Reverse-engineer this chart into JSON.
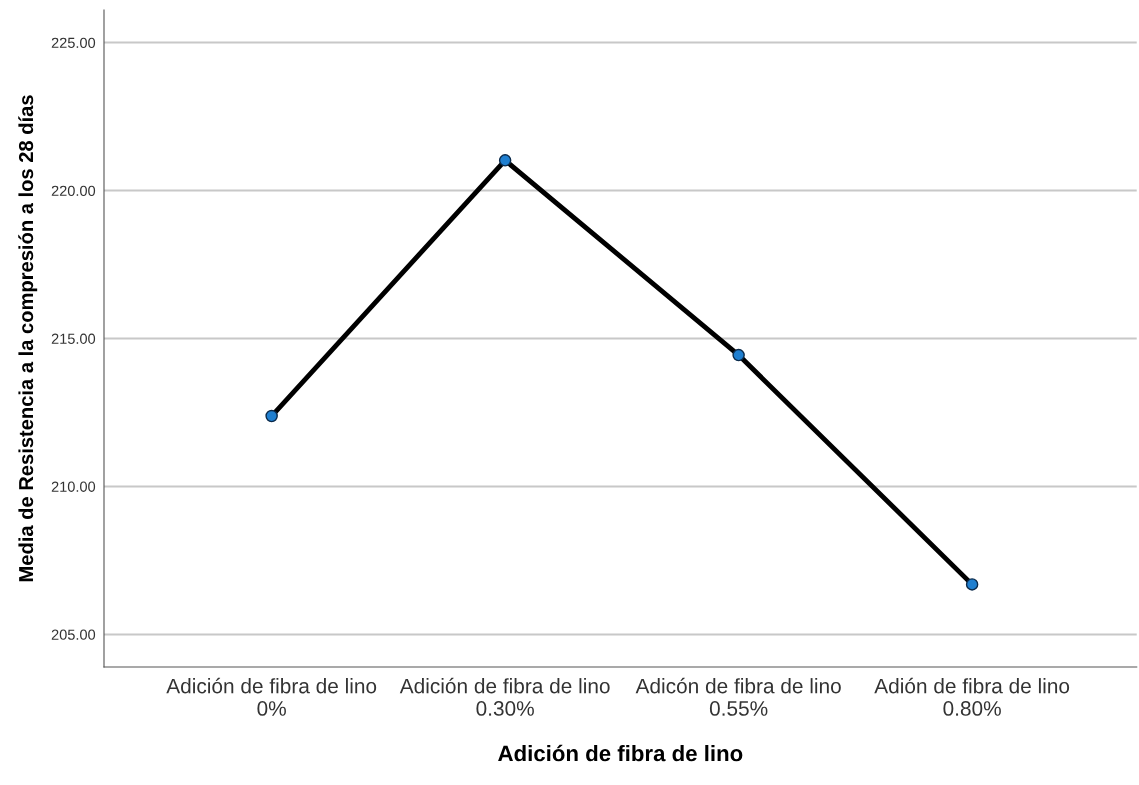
{
  "chart_data": {
    "type": "line",
    "xlabel": "Adición de fibra de lino",
    "ylabel": "Media de Resistencia a la compresión a los 28 días",
    "categories": [
      "Adición de fibra de lino\n0%",
      "Adición de fibra de lino\n0.30%",
      "Adicón de fibra de lino\n0.55%",
      "Adión de fibra de lino\n0.80%"
    ],
    "series": [
      {
        "color": "#000000",
        "values": [
          212.38,
          221.02,
          214.44,
          206.69
        ]
      }
    ],
    "marker": "circle",
    "ylim": [
      203.9,
      226.1
    ],
    "yticks": [
      {
        "value": 205,
        "label": "205.00"
      },
      {
        "value": 210,
        "label": "210.00"
      },
      {
        "value": 215,
        "label": "215.00"
      },
      {
        "value": 220,
        "label": "220.00"
      },
      {
        "value": 225,
        "label": "225.00"
      }
    ],
    "grid": "y"
  }
}
